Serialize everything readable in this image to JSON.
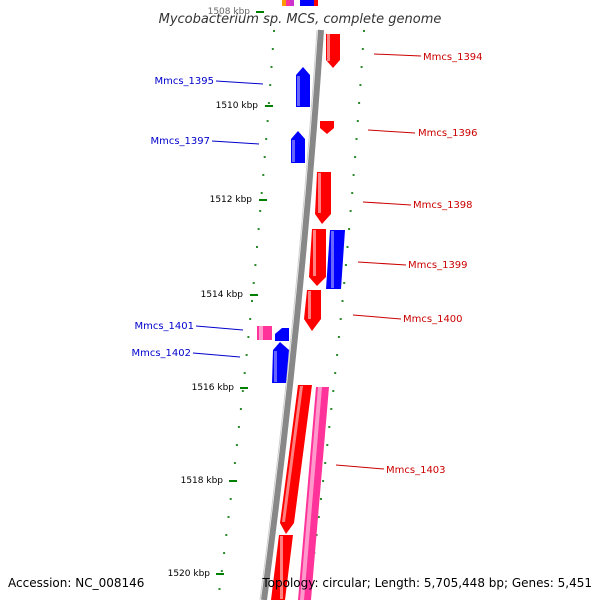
{
  "title": "Mycobacterium sp. MCS, complete genome",
  "footer": {
    "accession": "Accession: NC_008146",
    "topology": "Topology: circular; Length: 5,705,448 bp; Genes: 5,451"
  },
  "colors": {
    "forward": "#ff0000",
    "reverse": "#0000ff",
    "pink": "#ff3399",
    "backbone": "#888888",
    "tick": "#008000",
    "forward_label": "#cc0000",
    "reverse_label": "#0000cc"
  },
  "ticks": [
    {
      "label": "1508 kbp"
    },
    {
      "label": "1510 kbp"
    },
    {
      "label": "1512 kbp"
    },
    {
      "label": "1514 kbp"
    },
    {
      "label": "1516 kbp"
    },
    {
      "label": "1518 kbp"
    },
    {
      "label": "1520 kbp"
    }
  ],
  "genes": [
    {
      "name": "Mmcs_1394",
      "strand": "forward"
    },
    {
      "name": "Mmcs_1395",
      "strand": "reverse"
    },
    {
      "name": "Mmcs_1396",
      "strand": "forward"
    },
    {
      "name": "Mmcs_1397",
      "strand": "reverse"
    },
    {
      "name": "Mmcs_1398",
      "strand": "forward"
    },
    {
      "name": "Mmcs_1399",
      "strand": "forward"
    },
    {
      "name": "Mmcs_1400",
      "strand": "forward"
    },
    {
      "name": "Mmcs_1401",
      "strand": "reverse"
    },
    {
      "name": "Mmcs_1402",
      "strand": "reverse"
    },
    {
      "name": "Mmcs_1403",
      "strand": "forward"
    }
  ]
}
